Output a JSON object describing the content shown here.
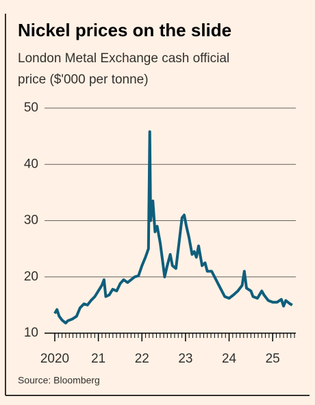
{
  "chart_data": {
    "type": "line",
    "title": "Nickel prices on the slide",
    "subtitle": [
      "London Metal Exchange cash official",
      "price ($'000 per tonne)"
    ],
    "source": "Source: Bloomberg",
    "x": [
      2020.0,
      2020.05,
      2020.1,
      2020.17,
      2020.25,
      2020.3,
      2020.4,
      2020.5,
      2020.58,
      2020.67,
      2020.75,
      2020.83,
      2020.92,
      2021.0,
      2021.08,
      2021.13,
      2021.17,
      2021.25,
      2021.33,
      2021.42,
      2021.5,
      2021.58,
      2021.67,
      2021.75,
      2021.83,
      2021.92,
      2022.0,
      2022.08,
      2022.15,
      2022.18,
      2022.2,
      2022.25,
      2022.3,
      2022.35,
      2022.42,
      2022.48,
      2022.52,
      2022.58,
      2022.65,
      2022.7,
      2022.78,
      2022.85,
      2022.92,
      2022.97,
      2023.02,
      2023.08,
      2023.15,
      2023.2,
      2023.25,
      2023.3,
      2023.38,
      2023.45,
      2023.5,
      2023.6,
      2023.7,
      2023.8,
      2023.9,
      2024.0,
      2024.1,
      2024.2,
      2024.3,
      2024.35,
      2024.4,
      2024.5,
      2024.55,
      2024.65,
      2024.75,
      2024.8,
      2024.9,
      2025.0,
      2025.1,
      2025.2,
      2025.25,
      2025.3,
      2025.4,
      2025.45
    ],
    "series": [
      {
        "name": "Nickel",
        "color": "#0f5e7c",
        "values": [
          13.5,
          14.2,
          13.0,
          12.3,
          11.8,
          12.2,
          12.5,
          13.0,
          14.5,
          15.2,
          15.0,
          15.8,
          16.5,
          17.5,
          18.5,
          19.5,
          16.5,
          16.8,
          17.8,
          17.5,
          18.8,
          19.5,
          19.0,
          19.5,
          20.0,
          20.2,
          22.0,
          23.5,
          25.0,
          45.8,
          30.0,
          33.5,
          28.0,
          29.0,
          26.0,
          22.5,
          20.0,
          22.0,
          24.0,
          22.0,
          21.5,
          26.0,
          30.5,
          31.0,
          29.0,
          27.0,
          24.0,
          24.5,
          23.5,
          25.5,
          22.0,
          22.5,
          21.0,
          21.0,
          19.5,
          18.0,
          16.5,
          16.2,
          16.8,
          17.5,
          18.5,
          21.0,
          18.0,
          17.5,
          16.5,
          16.2,
          17.5,
          16.8,
          15.8,
          15.5,
          15.5,
          16.0,
          14.8,
          15.8,
          15.2,
          15.0
        ]
      }
    ],
    "xlim": [
      2020,
      2025.5
    ],
    "xticks": [
      2020,
      {
        "value": 2021,
        "label": "21"
      },
      {
        "value": 2022,
        "label": "22"
      },
      {
        "value": 2023,
        "label": "23"
      },
      {
        "value": 2024,
        "label": "24"
      },
      {
        "value": 2025,
        "label": "25"
      }
    ],
    "ylim": [
      10,
      50
    ],
    "yticks": [
      10,
      20,
      30,
      40,
      50
    ],
    "grid": true
  }
}
